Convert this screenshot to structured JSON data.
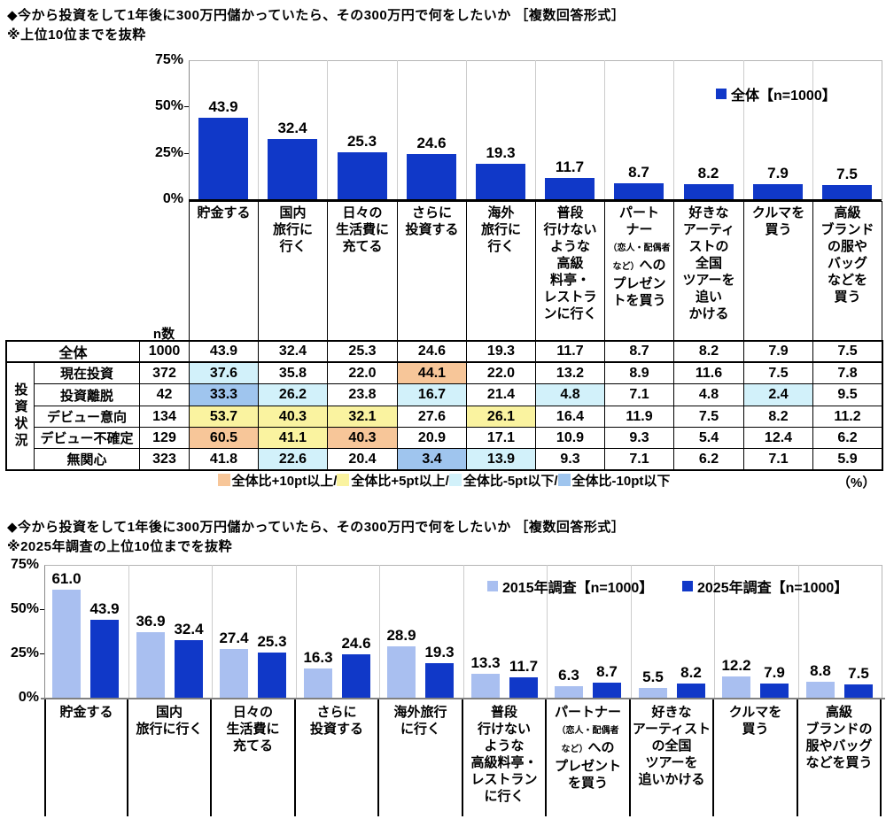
{
  "colors": {
    "bar_dark_blue": "#1038C8",
    "bar_light_blue": "#A9BFF0",
    "highlight": {
      "o": "#F7C699",
      "y": "#FAF3A0",
      "c": "#D2F1FA",
      "b": "#9FC5EE"
    }
  },
  "section1": {
    "title": "◆今から投資をして1年後に300万円儲かっていたら、その300万円で何をしたいか ［複数回答形式］",
    "subtitle": "※上位10位までを抜粋",
    "chart_data": {
      "type": "bar",
      "title": "今から投資をして1年後に300万円儲かっていたら、その300万円で何をしたいか（上位10位）",
      "ylim": [
        0,
        75
      ],
      "yticks": [
        "75%",
        "50%",
        "25%",
        "0%"
      ],
      "grid": "vertical",
      "legend_position": "top-right",
      "categories": [
        "貯金する",
        "国内旅行に行く",
        "日々の生活費に充てる",
        "さらに投資する",
        "海外旅行に行く",
        "普段行けないような高級料亭・レストランに行く",
        "パートナー（恋人・配偶者など）へのプレゼントを買う",
        "好きなアーティストの全国ツアーを追いかける",
        "クルマを買う",
        "高級ブランドの服やバッグなどを買う"
      ],
      "series": [
        {
          "name": "全体【n=1000】",
          "color_key": "bar_dark_blue",
          "values": [
            43.9,
            32.4,
            25.3,
            24.6,
            19.3,
            11.7,
            8.7,
            8.2,
            7.9,
            7.5
          ]
        }
      ],
      "cat_lines": [
        [
          "貯金する"
        ],
        [
          "国内",
          "旅行に",
          "行く"
        ],
        [
          "日々の",
          "生活費に",
          "充てる"
        ],
        [
          "さらに",
          "投資する"
        ],
        [
          "海外",
          "旅行に",
          "行く"
        ],
        [
          "普段",
          "行けない",
          "ような",
          "高級",
          "料亭・",
          "レストラ",
          "ンに行く"
        ],
        [
          "パート",
          "ナー",
          [
            [
              "（恋人・配偶者",
              "s"
            ]
          ],
          [
            [
              "など）",
              "s"
            ],
            [
              "への",
              "n"
            ]
          ],
          "プレゼン",
          "トを買う"
        ],
        [
          "好きな",
          "アーティ",
          "ストの",
          "全国",
          "ツアーを",
          "追い",
          "かける"
        ],
        [
          "クルマを",
          "買う"
        ],
        [
          "高級",
          "ブランド",
          "の服や",
          "バッグ",
          "などを",
          "買う"
        ]
      ]
    }
  },
  "table": {
    "n_header": "n数",
    "group_label": "投資状況",
    "all_row": {
      "label": "全体",
      "n": "1000",
      "values": [
        "43.9",
        "32.4",
        "25.3",
        "24.6",
        "19.3",
        "11.7",
        "8.7",
        "8.2",
        "7.9",
        "7.5"
      ],
      "hl": [
        "",
        "",
        "",
        "",
        "",
        "",
        "",
        "",
        "",
        ""
      ]
    },
    "rows": [
      {
        "label": "現在投資",
        "n": "372",
        "values": [
          "37.6",
          "35.8",
          "22.0",
          "44.1",
          "22.0",
          "13.2",
          "8.9",
          "11.6",
          "7.5",
          "7.8"
        ],
        "hl": [
          "c",
          "",
          "",
          "o",
          "",
          "",
          "",
          "",
          "",
          ""
        ]
      },
      {
        "label": "投資離脱",
        "n": "42",
        "values": [
          "33.3",
          "26.2",
          "23.8",
          "16.7",
          "21.4",
          "4.8",
          "7.1",
          "4.8",
          "2.4",
          "9.5"
        ],
        "hl": [
          "b",
          "c",
          "",
          "c",
          "",
          "c",
          "",
          "",
          "c",
          ""
        ]
      },
      {
        "label": "デビュー意向",
        "n": "134",
        "values": [
          "53.7",
          "40.3",
          "32.1",
          "27.6",
          "26.1",
          "16.4",
          "11.9",
          "7.5",
          "8.2",
          "11.2"
        ],
        "hl": [
          "y",
          "y",
          "y",
          "",
          "y",
          "",
          "",
          "",
          "",
          ""
        ]
      },
      {
        "label": "デビュー不確定",
        "n": "129",
        "values": [
          "60.5",
          "41.1",
          "40.3",
          "20.9",
          "17.1",
          "10.9",
          "9.3",
          "5.4",
          "12.4",
          "6.2"
        ],
        "hl": [
          "o",
          "y",
          "o",
          "",
          "",
          "",
          "",
          "",
          "",
          ""
        ]
      },
      {
        "label": "無関心",
        "n": "323",
        "values": [
          "41.8",
          "22.6",
          "20.4",
          "3.4",
          "13.9",
          "9.3",
          "7.1",
          "6.2",
          "7.1",
          "5.9"
        ],
        "hl": [
          "",
          "c",
          "",
          "b",
          "c",
          "",
          "",
          "",
          "",
          ""
        ]
      }
    ],
    "hl_legend": [
      {
        "color_key": "o",
        "label": "全体比+10pt以上/"
      },
      {
        "color_key": "y",
        "label": "全体比+5pt以上/"
      },
      {
        "color_key": "c",
        "label": "全体比-5pt以下/"
      },
      {
        "color_key": "b",
        "label": "全体比-10pt以下"
      }
    ],
    "unit_label": "（%）"
  },
  "section2": {
    "title": "◆今から投資をして1年後に300万円儲かっていたら、その300万円で何をしたいか ［複数回答形式］",
    "subtitle": "※2025年調査の上位10位までを抜粋",
    "chart_data": {
      "type": "bar",
      "title": "2015年調査と2025年調査の比較（2025年調査の上位10位）",
      "ylim": [
        0,
        75
      ],
      "yticks": [
        "75%",
        "50%",
        "25%",
        "0%"
      ],
      "grid": "vertical",
      "legend_position": "top-right",
      "categories": [
        "貯金する",
        "国内旅行に行く",
        "日々の生活費に充てる",
        "さらに投資する",
        "海外旅行に行く",
        "普段行けないような高級料亭・レストランに行く",
        "パートナー（恋人・配偶者など）へのプレゼントを買う",
        "好きなアーティストの全国ツアーを追いかける",
        "クルマを買う",
        "高級ブランドの服やバッグなどを買う"
      ],
      "series": [
        {
          "name": "2015年調査【n=1000】",
          "color_key": "bar_light_blue",
          "values": [
            61.0,
            36.9,
            27.4,
            16.3,
            28.9,
            13.3,
            6.3,
            5.5,
            12.2,
            8.8
          ]
        },
        {
          "name": "2025年調査【n=1000】",
          "color_key": "bar_dark_blue",
          "values": [
            43.9,
            32.4,
            25.3,
            24.6,
            19.3,
            11.7,
            8.7,
            8.2,
            7.9,
            7.5
          ]
        }
      ],
      "cat_lines": [
        [
          "貯金する"
        ],
        [
          "国内",
          "旅行に行く"
        ],
        [
          "日々の",
          "生活費に",
          "充てる"
        ],
        [
          "さらに",
          "投資する"
        ],
        [
          "海外旅行",
          "に行く"
        ],
        [
          "普段",
          "行けない",
          "ような",
          "高級料亭・",
          "レストラン",
          "に行く"
        ],
        [
          "パートナー",
          [
            [
              "（恋人・配偶者",
              "s"
            ]
          ],
          [
            [
              "など）",
              "s"
            ],
            [
              "への",
              "n"
            ]
          ],
          "プレゼント",
          "を買う"
        ],
        [
          "好きな",
          "アーティスト",
          "の全国",
          "ツアーを",
          "追いかける"
        ],
        [
          "クルマを",
          "買う"
        ],
        [
          "高級",
          "ブランドの",
          "服やバッグ",
          "などを買う"
        ]
      ]
    }
  }
}
